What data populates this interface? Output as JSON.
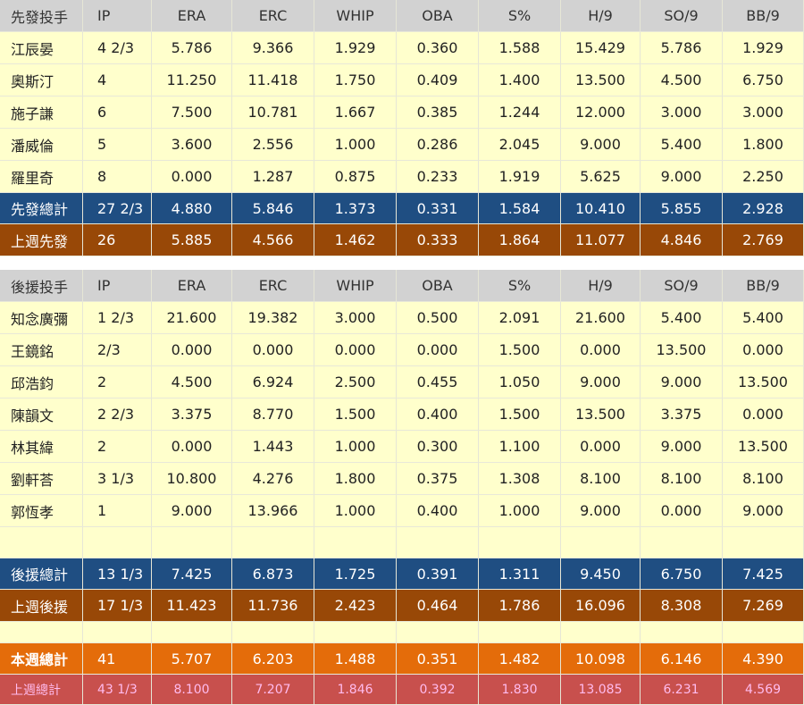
{
  "starters": {
    "header": [
      "先發投手",
      "IP",
      "ERA",
      "ERC",
      "WHIP",
      "OBA",
      "S%",
      "H/9",
      "SO/9",
      "BB/9"
    ],
    "rows": [
      [
        "江辰晏",
        "4 2/3",
        "5.786",
        "9.366",
        "1.929",
        "0.360",
        "1.588",
        "15.429",
        "5.786",
        "1.929"
      ],
      [
        "奧斯汀",
        "4",
        "11.250",
        "11.418",
        "1.750",
        "0.409",
        "1.400",
        "13.500",
        "4.500",
        "6.750"
      ],
      [
        "施子謙",
        "6",
        "7.500",
        "10.781",
        "1.667",
        "0.385",
        "1.244",
        "12.000",
        "3.000",
        "3.000"
      ],
      [
        "潘威倫",
        "5",
        "3.600",
        "2.556",
        "1.000",
        "0.286",
        "2.045",
        "9.000",
        "5.400",
        "1.800"
      ],
      [
        "羅里奇",
        "8",
        "0.000",
        "1.287",
        "0.875",
        "0.233",
        "1.919",
        "5.625",
        "9.000",
        "2.250"
      ]
    ],
    "total": [
      "先發總計",
      "27 2/3",
      "4.880",
      "5.846",
      "1.373",
      "0.331",
      "1.584",
      "10.410",
      "5.855",
      "2.928"
    ],
    "last_week": [
      "上週先發",
      "26",
      "5.885",
      "4.566",
      "1.462",
      "0.333",
      "1.864",
      "11.077",
      "4.846",
      "2.769"
    ]
  },
  "relievers": {
    "header": [
      "後援投手",
      "IP",
      "ERA",
      "ERC",
      "WHIP",
      "OBA",
      "S%",
      "H/9",
      "SO/9",
      "BB/9"
    ],
    "rows": [
      [
        "知念廣彌",
        "1 2/3",
        "21.600",
        "19.382",
        "3.000",
        "0.500",
        "2.091",
        "21.600",
        "5.400",
        "5.400"
      ],
      [
        "王鏡銘",
        "2/3",
        "0.000",
        "0.000",
        "0.000",
        "0.000",
        "1.500",
        "0.000",
        "13.500",
        "0.000"
      ],
      [
        "邱浩鈞",
        "2",
        "4.500",
        "6.924",
        "2.500",
        "0.455",
        "1.050",
        "9.000",
        "9.000",
        "13.500"
      ],
      [
        "陳韻文",
        "2 2/3",
        "3.375",
        "8.770",
        "1.500",
        "0.400",
        "1.500",
        "13.500",
        "3.375",
        "0.000"
      ],
      [
        "林其緯",
        "2",
        "0.000",
        "1.443",
        "1.000",
        "0.300",
        "1.100",
        "0.000",
        "9.000",
        "13.500"
      ],
      [
        "劉軒荅",
        "3 1/3",
        "10.800",
        "4.276",
        "1.800",
        "0.375",
        "1.308",
        "8.100",
        "8.100",
        "8.100"
      ],
      [
        "郭恆孝",
        "1",
        "9.000",
        "13.966",
        "1.000",
        "0.400",
        "1.000",
        "9.000",
        "0.000",
        "9.000"
      ]
    ],
    "total": [
      "後援總計",
      "13 1/3",
      "7.425",
      "6.873",
      "1.725",
      "0.391",
      "1.311",
      "9.450",
      "6.750",
      "7.425"
    ],
    "last_week": [
      "上週後援",
      "17 1/3",
      "11.423",
      "11.736",
      "2.423",
      "0.464",
      "1.786",
      "16.096",
      "8.308",
      "7.269"
    ]
  },
  "week_total": [
    "本週總計",
    "41",
    "5.707",
    "6.203",
    "1.488",
    "0.351",
    "1.482",
    "10.098",
    "6.146",
    "4.390"
  ],
  "last_week_total": [
    "上週總計",
    "43 1/3",
    "8.100",
    "7.207",
    "1.846",
    "0.392",
    "1.830",
    "13.085",
    "6.231",
    "4.569"
  ]
}
